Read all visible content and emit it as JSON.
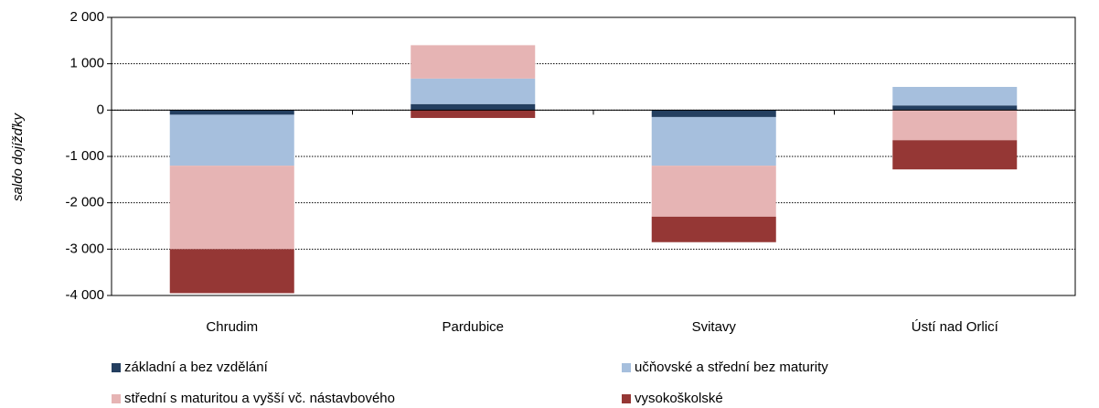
{
  "chart_data": {
    "type": "stacked_bar",
    "y_label": "saldo dojížďky",
    "categories": [
      "Chrudim",
      "Pardubice",
      "Svitavy",
      "Ústí nad Orlicí"
    ],
    "series": [
      {
        "name": "základní a bez vzdělání",
        "color": "#243f60",
        "values": [
          -100,
          130,
          -150,
          100
        ]
      },
      {
        "name": "učňovské a střední bez maturity",
        "color": "#a6bfdd",
        "values": [
          -1100,
          550,
          -1050,
          400
        ]
      },
      {
        "name": "střední s maturitou a vyšší vč. nástavbového",
        "color": "#e6b4b4",
        "values": [
          -1800,
          720,
          -1100,
          -650
        ]
      },
      {
        "name": "vysokoškolské",
        "color": "#953735",
        "values": [
          -950,
          -170,
          -550,
          -630
        ]
      }
    ],
    "ylim": [
      -4000,
      2000
    ],
    "yticks": [
      {
        "value": -4000,
        "label": "-4 000"
      },
      {
        "value": -3000,
        "label": "-3 000"
      },
      {
        "value": -2000,
        "label": "-2 000"
      },
      {
        "value": -1000,
        "label": "-1 000"
      },
      0,
      {
        "value": 1000,
        "label": "1 000"
      },
      {
        "value": 2000,
        "label": "2 000"
      }
    ],
    "grid": true
  }
}
